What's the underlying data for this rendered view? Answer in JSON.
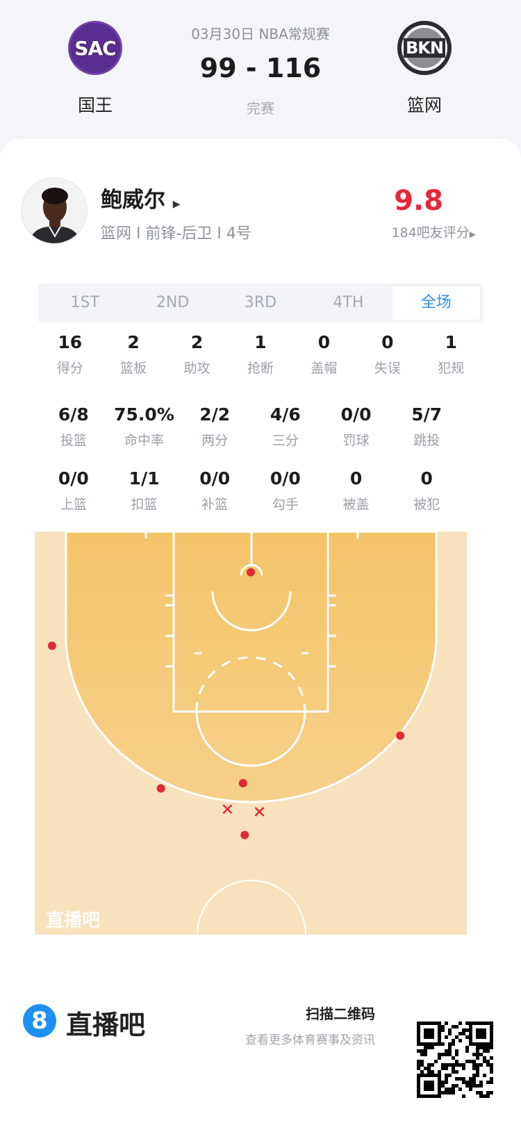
{
  "match": {
    "date_league": "03月30日 NBA常规赛",
    "score": "99 - 116",
    "status": "完赛",
    "home": {
      "abbr": "SAC",
      "name": "国王",
      "color": "#5a2d91"
    },
    "away": {
      "abbr": "BKN",
      "name": "篮网",
      "color": "#2b2b33"
    }
  },
  "player": {
    "name": "鲍威尔",
    "info": "篮网 I 前锋-后卫 I 4号",
    "rating": "9.8",
    "rating_count": "184吧友评分",
    "rating_color": "#e8263a"
  },
  "tabs": [
    {
      "label": "1ST"
    },
    {
      "label": "2ND"
    },
    {
      "label": "3RD"
    },
    {
      "label": "4TH"
    },
    {
      "label": "全场",
      "active": true
    }
  ],
  "stats_row1": [
    {
      "v": "16",
      "l": "得分"
    },
    {
      "v": "2",
      "l": "篮板"
    },
    {
      "v": "2",
      "l": "助攻"
    },
    {
      "v": "1",
      "l": "抢断"
    },
    {
      "v": "0",
      "l": "盖帽"
    },
    {
      "v": "0",
      "l": "失误"
    },
    {
      "v": "1",
      "l": "犯规"
    }
  ],
  "stats_row2": [
    {
      "v": "6/8",
      "l": "投篮"
    },
    {
      "v": "75.0%",
      "l": "命中率"
    },
    {
      "v": "2/2",
      "l": "两分"
    },
    {
      "v": "4/6",
      "l": "三分"
    },
    {
      "v": "0/0",
      "l": "罚球"
    },
    {
      "v": "5/7",
      "l": "跳投"
    }
  ],
  "stats_row3": [
    {
      "v": "0/0",
      "l": "上篮"
    },
    {
      "v": "1/1",
      "l": "扣篮"
    },
    {
      "v": "0/0",
      "l": "补篮"
    },
    {
      "v": "0/0",
      "l": "勾手"
    },
    {
      "v": "0",
      "l": "被盖"
    },
    {
      "v": "0",
      "l": "被犯"
    }
  ],
  "shot_chart": {
    "units": "feet from hoop (x) / from baseline (y)",
    "watermark": "直播吧",
    "make_color": "#e02a35",
    "shots": [
      {
        "x": 0,
        "y": 4.7,
        "made": true
      },
      {
        "x": -23,
        "y": 13.2,
        "made": true
      },
      {
        "x": 17.3,
        "y": 23.6,
        "made": true
      },
      {
        "x": -10.4,
        "y": 29.7,
        "made": true
      },
      {
        "x": -0.9,
        "y": 29.1,
        "made": true
      },
      {
        "x": -0.7,
        "y": 35.1,
        "made": true
      },
      {
        "x": -2.7,
        "y": 32.1,
        "made": false
      },
      {
        "x": 1.0,
        "y": 32.4,
        "made": false
      }
    ]
  },
  "footer": {
    "logo_mark": "8",
    "brand": "直播吧",
    "scan": "扫描二维码",
    "sub": "查看更多体育赛事及资讯"
  }
}
